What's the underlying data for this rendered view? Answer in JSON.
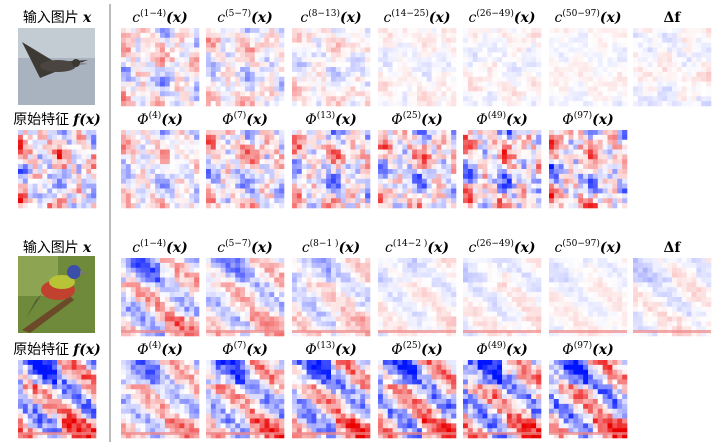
{
  "panels": [
    {
      "input_label": {
        "text": "输入图片",
        "var": "x"
      },
      "feature_label": {
        "text": "原始特征",
        "var": "f(x)"
      },
      "row1": [
        {
          "base": "c",
          "sup": "(1−4)",
          "arg": "(x)"
        },
        {
          "base": "c",
          "sup": "(5−7)",
          "arg": "(x)"
        },
        {
          "base": "c",
          "sup": "(8−13)",
          "arg": "(x)"
        },
        {
          "base": "c",
          "sup": "(14−25)",
          "arg": "(x)"
        },
        {
          "base": "c",
          "sup": "(26−49)",
          "arg": "(x)"
        },
        {
          "base": "c",
          "sup": "(50−97)",
          "arg": "(x)"
        },
        {
          "base": "Δf"
        }
      ],
      "row2": [
        {
          "base": "Φ",
          "sup": "(4)",
          "arg": "(x)"
        },
        {
          "base": "Φ",
          "sup": "(7)",
          "arg": "(x)"
        },
        {
          "base": "Φ",
          "sup": "(13)",
          "arg": "(x)"
        },
        {
          "base": "Φ",
          "sup": "(25)",
          "arg": "(x)"
        },
        {
          "base": "Φ",
          "sup": "(49)",
          "arg": "(x)"
        },
        {
          "base": "Φ",
          "sup": "(97)",
          "arg": "(x)"
        }
      ]
    },
    {
      "input_label": {
        "text": "输入图片",
        "var": "x"
      },
      "feature_label": {
        "text": "原始特征",
        "var": "f(x)"
      },
      "row1": [
        {
          "base": "c",
          "sup": "(1−4)",
          "arg": "(x)"
        },
        {
          "base": "c",
          "sup": "(5−7)",
          "arg": "(x)"
        },
        {
          "base": "c",
          "sup": "(8−1 )",
          "arg": "(x)"
        },
        {
          "base": "c",
          "sup": "(14−2 )",
          "arg": "(x)"
        },
        {
          "base": "c",
          "sup": "(26−49)",
          "arg": "(x)"
        },
        {
          "base": "c",
          "sup": "(50−97)",
          "arg": "(x)"
        },
        {
          "base": "Δf"
        }
      ],
      "row2": [
        {
          "base": "Φ",
          "sup": "(4)",
          "arg": "(x)"
        },
        {
          "base": "Φ",
          "sup": "(7)",
          "arg": "(x)"
        },
        {
          "base": "Φ",
          "sup": "(13)",
          "arg": "(x)"
        },
        {
          "base": "Φ",
          "sup": "(25)",
          "arg": "(x)"
        },
        {
          "base": "Φ",
          "sup": "(49)",
          "arg": "(x)"
        },
        {
          "base": "Φ",
          "sup": "(97)",
          "arg": "(x)"
        }
      ]
    }
  ]
}
